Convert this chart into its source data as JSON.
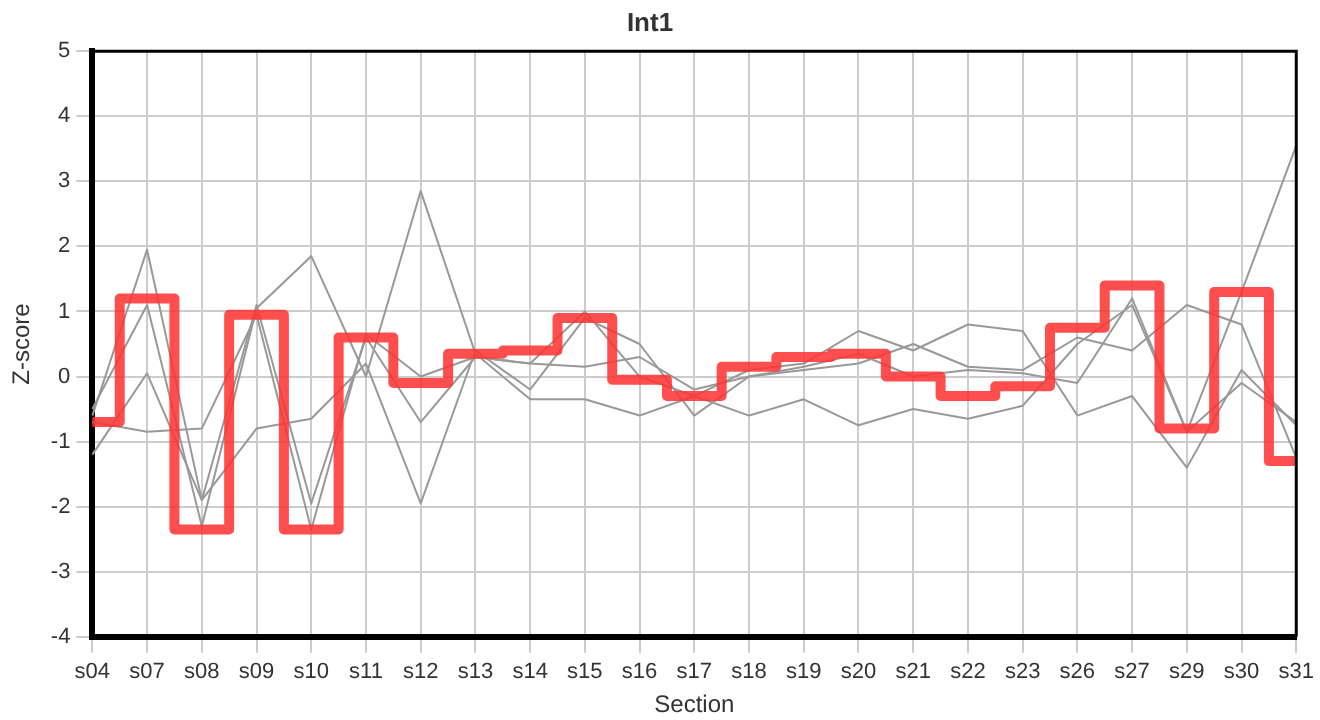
{
  "chart_data": {
    "type": "line",
    "title": "Int1",
    "xlabel": "Section",
    "ylabel": "Z-score",
    "categories": [
      "s04",
      "s07",
      "s08",
      "s09",
      "s10",
      "s11",
      "s12",
      "s13",
      "s14",
      "s15",
      "s16",
      "s17",
      "s18",
      "s19",
      "s20",
      "s21",
      "s22",
      "s23",
      "s26",
      "s27",
      "s29",
      "s30",
      "s31"
    ],
    "series": [
      {
        "color": "#999999",
        "values": [
          -0.6,
          1.95,
          -1.9,
          1.1,
          -1.95,
          0.6,
          -0.7,
          0.3,
          0.2,
          1.0,
          0.0,
          -0.3,
          0.1,
          0.2,
          0.7,
          0.4,
          0.8,
          0.7,
          -0.6,
          -0.3,
          -1.4,
          0.1,
          -0.75
        ]
      },
      {
        "color": "#999999",
        "values": [
          -0.5,
          1.1,
          -2.3,
          1.05,
          1.85,
          0.0,
          2.85,
          0.35,
          -0.35,
          -0.35,
          -0.6,
          -0.3,
          -0.6,
          -0.35,
          -0.75,
          -0.5,
          -0.65,
          -0.45,
          0.5,
          1.1,
          -0.85,
          1.3,
          3.55
        ]
      },
      {
        "color": "#999999",
        "values": [
          -1.2,
          0.05,
          -1.9,
          -0.8,
          -0.65,
          0.2,
          -1.95,
          0.4,
          -0.2,
          0.9,
          0.5,
          -0.6,
          0.0,
          0.1,
          0.2,
          0.5,
          0.15,
          0.1,
          0.6,
          0.4,
          1.1,
          0.8,
          -1.25
        ]
      },
      {
        "color": "#999999",
        "values": [
          -0.7,
          -0.85,
          -0.8,
          0.95,
          -2.35,
          0.65,
          0.0,
          0.3,
          0.2,
          0.15,
          0.3,
          -0.2,
          0.0,
          0.15,
          0.35,
          0.0,
          0.1,
          0.05,
          -0.1,
          1.2,
          -0.85,
          -0.1,
          -0.7
        ]
      },
      {
        "type": "step",
        "color": "#ff3333",
        "values": [
          -0.7,
          1.2,
          -2.35,
          0.95,
          -2.35,
          0.6,
          -0.1,
          0.35,
          0.4,
          0.9,
          -0.05,
          -0.3,
          0.15,
          0.3,
          0.35,
          0.0,
          -0.3,
          -0.15,
          0.75,
          1.4,
          -0.8,
          1.3,
          -1.3
        ]
      }
    ],
    "ylim": [
      -4,
      5
    ],
    "yticks": [
      -4,
      -3,
      -2,
      -1,
      0,
      1,
      2,
      3,
      4,
      5
    ],
    "grid": true,
    "legend": false,
    "marker": "none",
    "line_style": "solid"
  }
}
